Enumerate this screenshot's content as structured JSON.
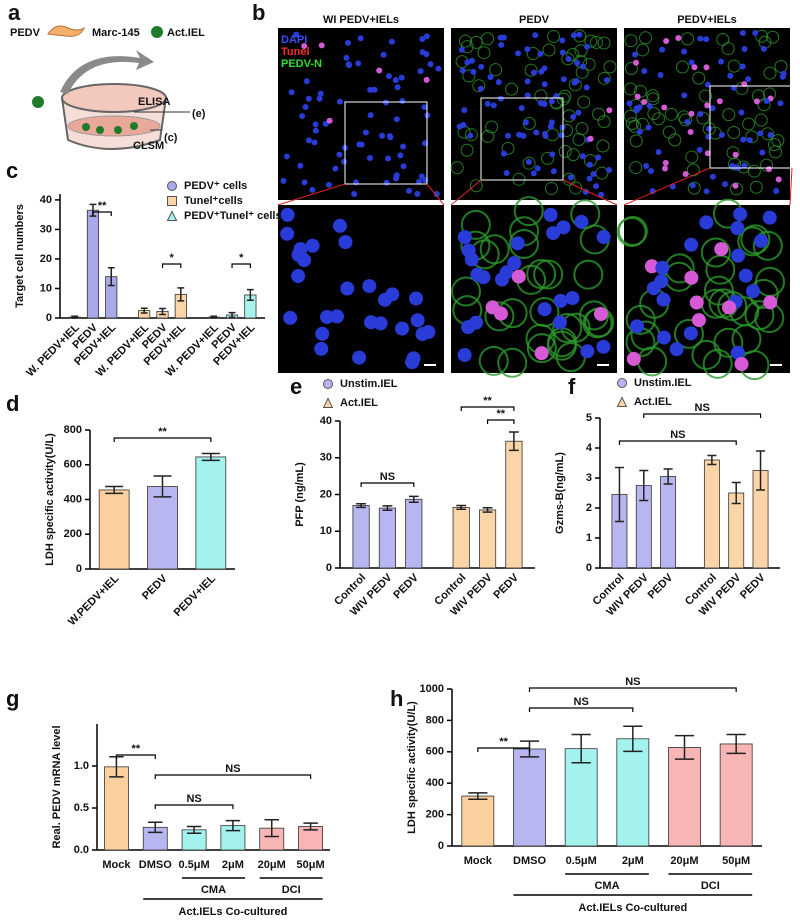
{
  "figure_a": {
    "panel": "a",
    "legend": [
      "PEDV",
      "Marc-145",
      "Act.IEL"
    ],
    "labels": [
      "ELISA",
      "(e)",
      "CLSM",
      "(c)"
    ]
  },
  "figure_b": {
    "panel": "b",
    "columns": [
      "WI PEDV+IELs",
      "PEDV",
      "PEDV+IELs"
    ],
    "stains": [
      "DAPI",
      "Tunel",
      "PEDV-N"
    ]
  },
  "chart_data": [
    {
      "type": "bar",
      "panel": "c",
      "ylabel": "Target cell numbers",
      "categories": [
        "W. PEDV+IEL",
        "PEDV",
        "PEDV+IEL"
      ],
      "series": [
        {
          "name": "PEDV⁺ cells",
          "marker": "circle",
          "color": "#a9a8e8",
          "values": [
            0.3,
            36.5,
            14
          ],
          "errors": [
            0.3,
            2,
            3
          ]
        },
        {
          "name": "Tunel⁺cells",
          "marker": "square",
          "color": "#fbd5a8",
          "values": [
            2.5,
            2.2,
            8
          ],
          "errors": [
            0.8,
            1,
            2.2
          ]
        },
        {
          "name": "PEDV⁺Tunel⁺ cells",
          "marker": "triangle",
          "color": "#a8f3ec",
          "values": [
            0.3,
            1,
            7.8
          ],
          "errors": [
            0.3,
            0.8,
            1.8
          ]
        }
      ],
      "ylim": [
        0,
        42
      ],
      "yticks": [
        0,
        10,
        20,
        30,
        40
      ],
      "annotations": [
        "**",
        "*",
        "*"
      ]
    },
    {
      "type": "bar",
      "panel": "d",
      "ylabel": "LDH specific activity(U/L)",
      "categories": [
        "W.PEDV+IEL",
        "PEDV",
        "PEDV+IEL"
      ],
      "values": [
        455,
        475,
        645
      ],
      "errors": [
        20,
        60,
        20
      ],
      "colors": [
        "#fbd09e",
        "#b8b6f0",
        "#a4f2ee"
      ],
      "ylim": [
        0,
        800
      ],
      "yticks": [
        0,
        200,
        400,
        600,
        800
      ],
      "annotations": [
        "**"
      ]
    },
    {
      "type": "bar",
      "panel": "e",
      "ylabel": "PFP (ng/mL)",
      "categories": [
        "Control",
        "WIV PEDV",
        "PEDV"
      ],
      "series": [
        {
          "name": "Unstim.IEL",
          "marker": "circle",
          "color": "#b8b6f0",
          "values": [
            17,
            16.3,
            18.7
          ],
          "errors": [
            0.5,
            0.6,
            0.8
          ]
        },
        {
          "name": "Act.IEL",
          "marker": "triangle",
          "color": "#fbd5a8",
          "values": [
            16.5,
            15.8,
            34.5
          ],
          "errors": [
            0.5,
            0.6,
            2.5
          ]
        }
      ],
      "ylim": [
        0,
        40
      ],
      "yticks": [
        0,
        10,
        20,
        30,
        40
      ],
      "annotations": [
        "NS",
        "**",
        "**"
      ]
    },
    {
      "type": "bar",
      "panel": "f",
      "ylabel": "Gzms-B(ng/mL)",
      "categories": [
        "Control",
        "WIV PEDV",
        "PEDV"
      ],
      "series": [
        {
          "name": "Unstim.IEL",
          "marker": "circle",
          "color": "#b8b6f0",
          "values": [
            2.45,
            2.75,
            3.05
          ],
          "errors": [
            0.9,
            0.5,
            0.25
          ]
        },
        {
          "name": "Act.IEL",
          "marker": "triangle",
          "color": "#fbd5a8",
          "values": [
            3.6,
            2.5,
            3.25
          ],
          "errors": [
            0.15,
            0.35,
            0.65
          ]
        }
      ],
      "ylim": [
        0,
        5
      ],
      "yticks": [
        0,
        1,
        2,
        3,
        4,
        5
      ],
      "annotations": [
        "NS",
        "NS"
      ]
    },
    {
      "type": "bar",
      "panel": "g",
      "ylabel": "Real. PEDV mRNA level",
      "categories": [
        "Mock",
        "DMSO",
        "0.5μM",
        "2μM",
        "20μM",
        "50μM"
      ],
      "values": [
        0.99,
        0.27,
        0.24,
        0.29,
        0.26,
        0.28
      ],
      "errors": [
        0.12,
        0.06,
        0.04,
        0.06,
        0.1,
        0.04
      ],
      "colors": [
        "#fbd09e",
        "#b8b6f0",
        "#a4f2ee",
        "#a4f2ee",
        "#f7b5b5",
        "#f7b5b5"
      ],
      "ylim": [
        0,
        1.5
      ],
      "yticks": [
        {
          "value": 0,
          "label": "0.0"
        },
        {
          "value": 0.5,
          "label": "0.5"
        },
        {
          "value": 1,
          "label": "1.0"
        }
      ],
      "annotations": [
        "**",
        "NS",
        "NS"
      ],
      "group_labels": [
        "CMA",
        "DCI"
      ],
      "footer": "Act.IELs Co-cultured"
    },
    {
      "type": "bar",
      "panel": "h",
      "ylabel": "LDH specific activity(U/L)",
      "categories": [
        "Mock",
        "DMSO",
        "0.5μM",
        "2μM",
        "20μM",
        "50μM"
      ],
      "values": [
        318,
        618,
        620,
        683,
        628,
        650
      ],
      "errors": [
        20,
        50,
        90,
        80,
        75,
        60
      ],
      "colors": [
        "#fbd09e",
        "#b8b6f0",
        "#a4f2ee",
        "#a4f2ee",
        "#f7b5b5",
        "#f7b5b5"
      ],
      "ylim": [
        0,
        1000
      ],
      "yticks": [
        0,
        200,
        400,
        600,
        800,
        1000
      ],
      "annotations": [
        "**",
        "NS",
        "NS"
      ],
      "group_labels": [
        "CMA",
        "DCI"
      ],
      "footer": "Act.IELs Co-cultured"
    }
  ]
}
